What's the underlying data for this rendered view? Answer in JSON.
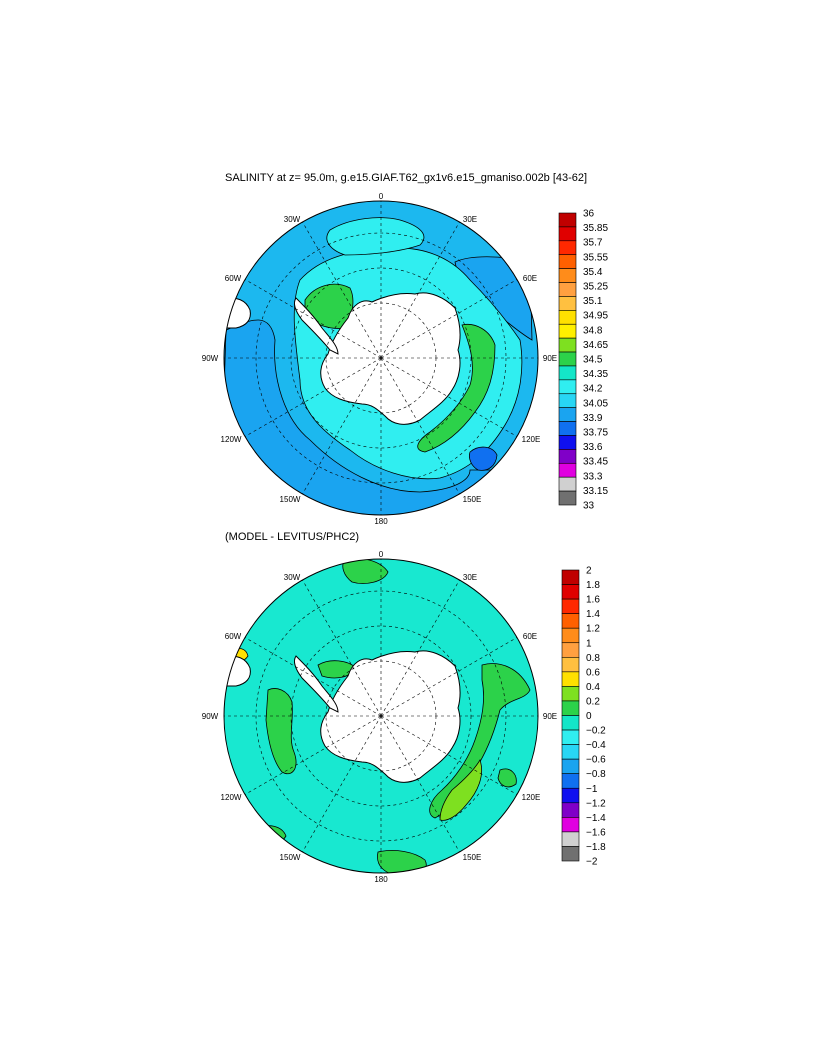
{
  "colors": {
    "land": "#ffffff",
    "coast": "#000000",
    "grid": "#000000"
  },
  "panels": [
    {
      "title": "SALINITY at z=  95.0m, g.e15.GIAF.T62_gx1v6.e15_gmaniso.002b [43-62]",
      "lon_labels": [
        "0",
        "30E",
        "60E",
        "90E",
        "120E",
        "150E",
        "180",
        "150W",
        "120W",
        "90W",
        "60W",
        "30W"
      ],
      "background_color": "#1cb8ef",
      "colorbar": {
        "labels": [
          "36",
          "35.85",
          "35.7",
          "35.55",
          "35.4",
          "35.25",
          "35.1",
          "34.95",
          "34.8",
          "34.65",
          "34.5",
          "34.35",
          "34.2",
          "34.05",
          "33.9",
          "33.75",
          "33.6",
          "33.45",
          "33.3",
          "33.15",
          "33"
        ],
        "colors": [
          "#c00000",
          "#e00000",
          "#ff2800",
          "#ff6000",
          "#ff8c1a",
          "#ffa040",
          "#ffc040",
          "#ffe000",
          "#fff000",
          "#7ee020",
          "#2cd24a",
          "#14e6c8",
          "#30eef0",
          "#28d6f4",
          "#1aa4f0",
          "#1070f0",
          "#1010f0",
          "#8000c8",
          "#e000e0",
          "#d0d0d0",
          "#707070"
        ]
      }
    },
    {
      "title": "(MODEL - LEVITUS/PHC2)",
      "lon_labels": [
        "0",
        "30E",
        "60E",
        "90E",
        "120E",
        "150E",
        "180",
        "150W",
        "120W",
        "90W",
        "60W",
        "30W"
      ],
      "background_color": "#18e8d0",
      "colorbar": {
        "labels": [
          "2",
          "1.8",
          "1.6",
          "1.4",
          "1.2",
          "1",
          "0.8",
          "0.6",
          "0.4",
          "0.2",
          "0",
          "−0.2",
          "−0.4",
          "−0.6",
          "−0.8",
          "−1",
          "−1.2",
          "−1.4",
          "−1.6",
          "−1.8",
          "−2"
        ],
        "colors": [
          "#c00000",
          "#e00000",
          "#ff2800",
          "#ff6000",
          "#ff8c1a",
          "#ffa040",
          "#ffc040",
          "#ffe000",
          "#7ee020",
          "#2cd24a",
          "#14e6c8",
          "#30eef0",
          "#28d6f4",
          "#1aa4f0",
          "#1070f0",
          "#1010f0",
          "#8000c8",
          "#e000e0",
          "#d0d0d0",
          "#707070"
        ]
      }
    }
  ]
}
